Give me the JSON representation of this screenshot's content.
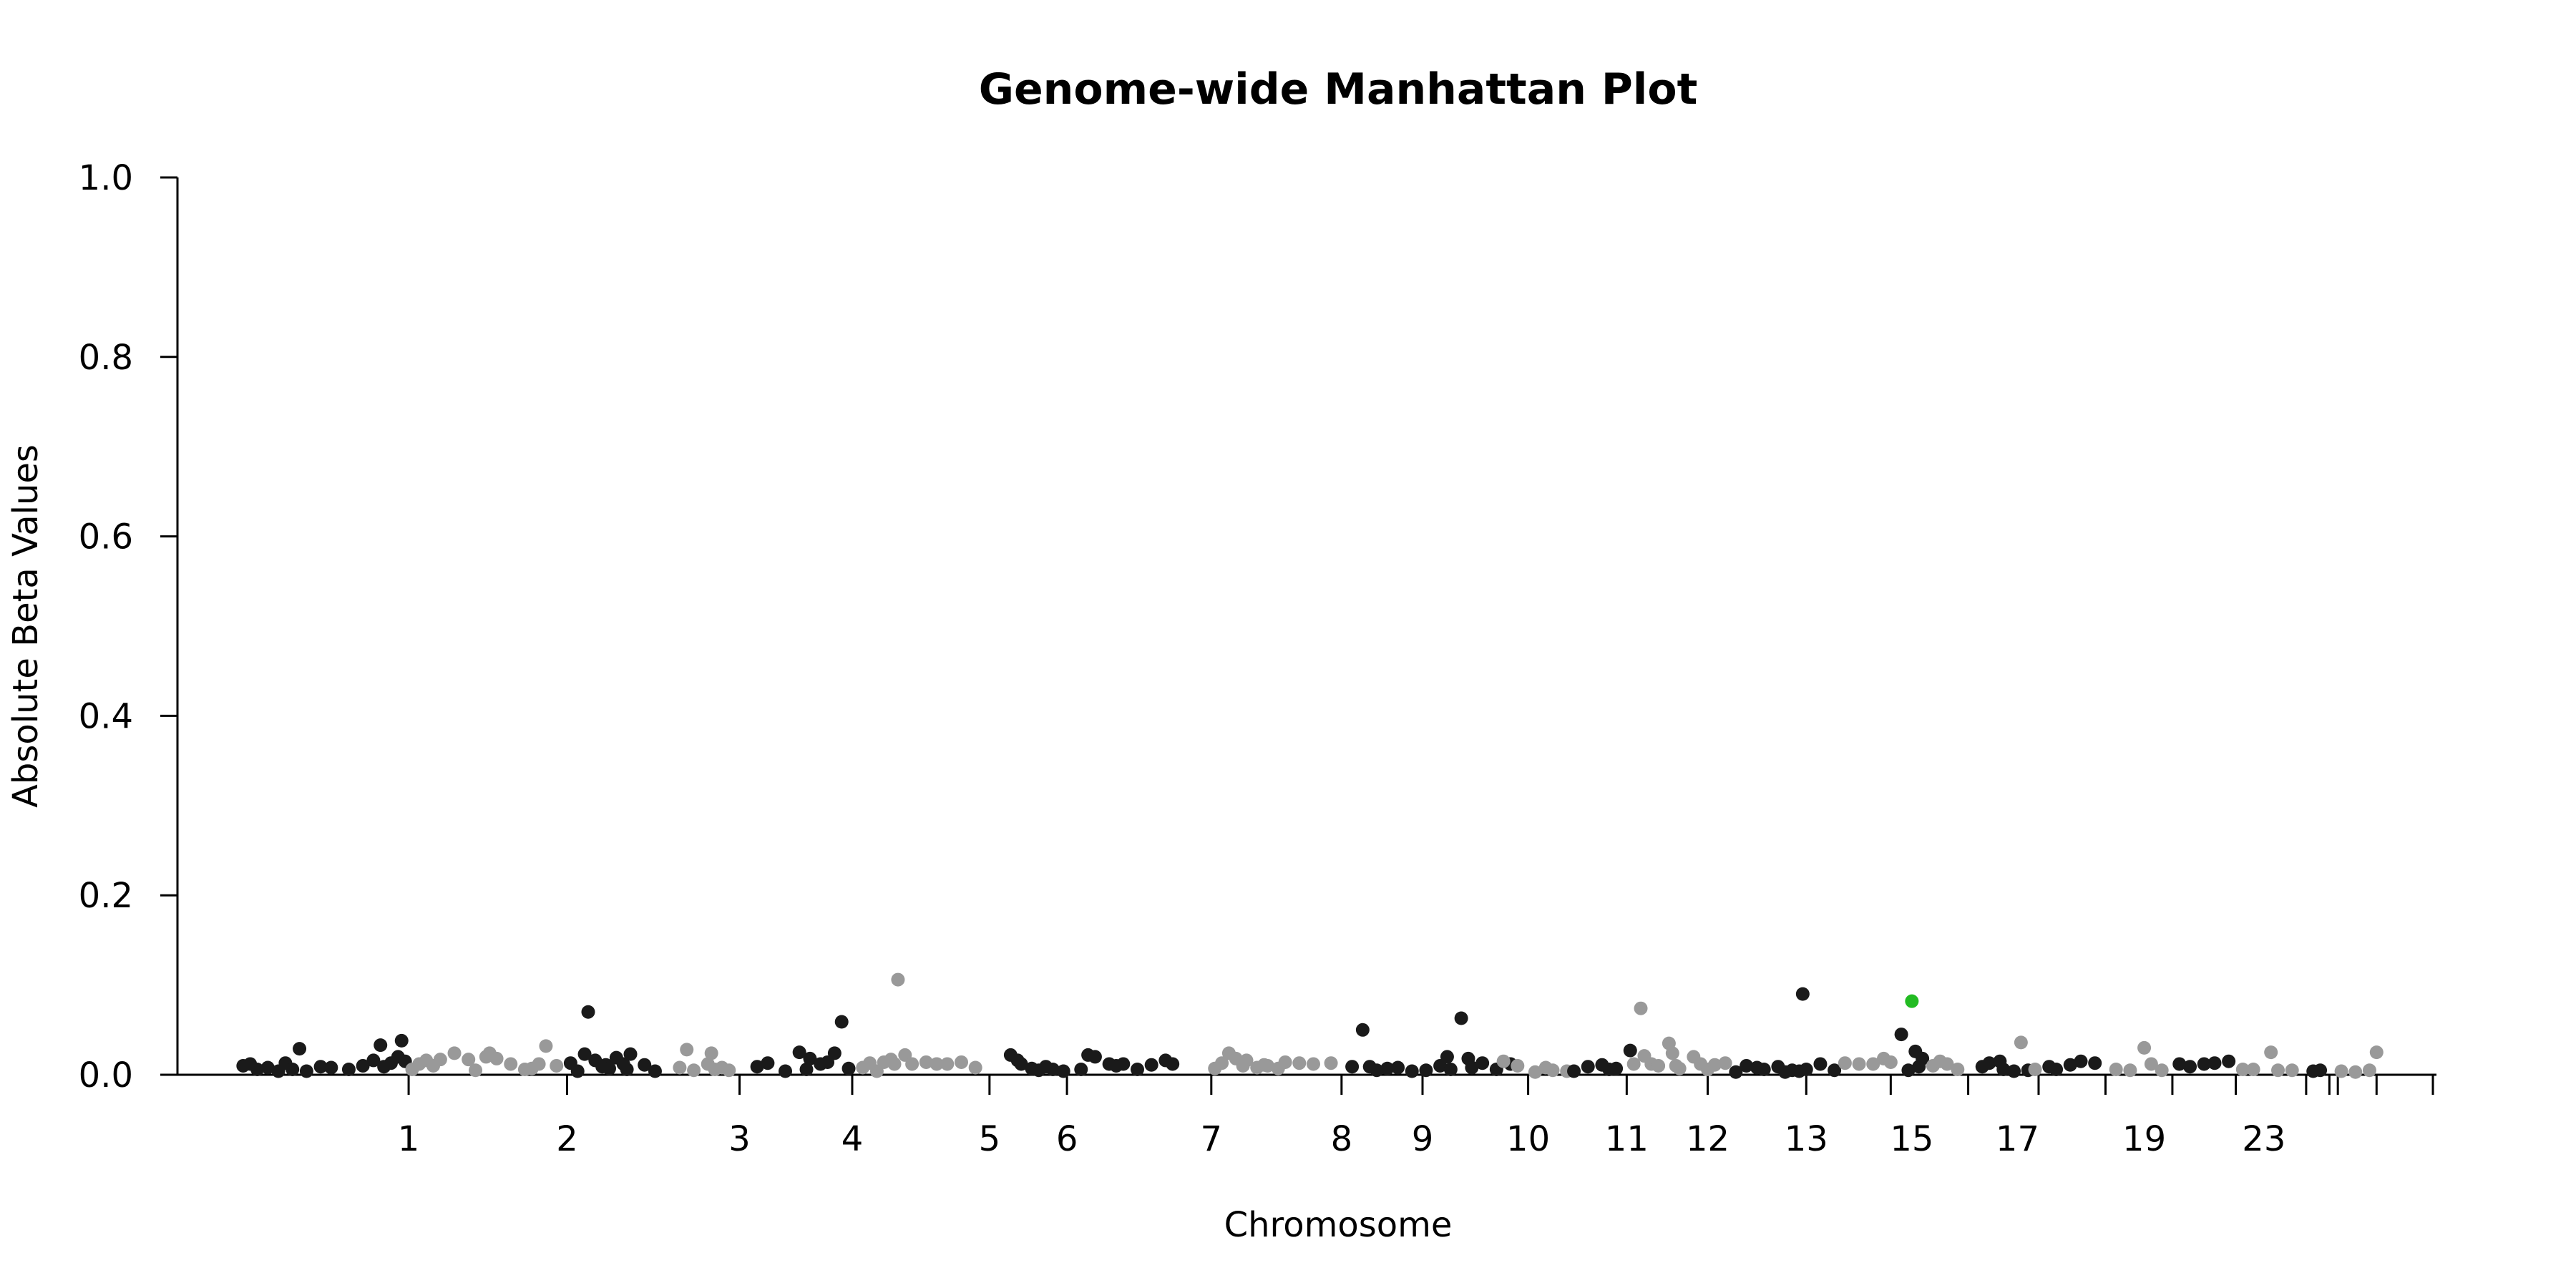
{
  "chart_data": {
    "type": "scatter",
    "title": "Genome-wide Manhattan Plot",
    "xlabel": "Chromosome",
    "ylabel": "Absolute Beta Values",
    "ylim": [
      0,
      1.0
    ],
    "yticks": [
      0.0,
      0.2,
      0.4,
      0.6,
      0.8,
      1.0
    ],
    "ytick_labels": [
      "0.0",
      "0.2",
      "0.4",
      "0.6",
      "0.8",
      "1.0"
    ],
    "xlim": [
      0,
      31.2
    ],
    "chromosome_boundaries": [
      0,
      2.45,
      4.7,
      7.15,
      8.75,
      10.7,
      11.8,
      13.85,
      15.7,
      16.85,
      18.35,
      19.75,
      20.9,
      22.3,
      23.5,
      24.6,
      25.6,
      26.55,
      27.5,
      28.4,
      29.4,
      29.73,
      29.85,
      30.4,
      31.2
    ],
    "x_tick_labels": [
      "1",
      "2",
      "3",
      "4",
      "5",
      "6",
      "7",
      "8",
      "9",
      "10",
      "11",
      "12",
      "13",
      "15",
      "17",
      "19",
      "23"
    ],
    "x_tick_positions": [
      2.45,
      4.7,
      7.15,
      8.75,
      10.7,
      11.8,
      13.85,
      15.7,
      16.85,
      18.35,
      19.75,
      20.9,
      22.3,
      23.8,
      25.3,
      27.1,
      28.8
    ],
    "grid": false,
    "colors": {
      "odd": "#1a1a1a",
      "even": "#999999",
      "highlight": "#22bb22"
    },
    "series": [
      {
        "points": [
          [
            0.1,
            0.01
          ],
          [
            0.2,
            0.012
          ],
          [
            0.3,
            0.006
          ],
          [
            0.45,
            0.008
          ],
          [
            0.6,
            0.004
          ],
          [
            0.7,
            0.013
          ],
          [
            0.8,
            0.006
          ],
          [
            0.9,
            0.029
          ],
          [
            1.0,
            0.004
          ],
          [
            1.2,
            0.009
          ],
          [
            1.35,
            0.008
          ],
          [
            1.6,
            0.006
          ],
          [
            1.8,
            0.01
          ],
          [
            1.95,
            0.016
          ],
          [
            2.05,
            0.033
          ],
          [
            2.1,
            0.009
          ],
          [
            2.2,
            0.013
          ],
          [
            2.3,
            0.02
          ],
          [
            2.35,
            0.038
          ],
          [
            2.4,
            0.015
          ]
        ]
      },
      {
        "points": [
          [
            2.5,
            0.006
          ],
          [
            2.6,
            0.012
          ],
          [
            2.7,
            0.016
          ],
          [
            2.8,
            0.01
          ],
          [
            2.9,
            0.017
          ],
          [
            3.1,
            0.024
          ],
          [
            3.3,
            0.017
          ],
          [
            3.4,
            0.005
          ],
          [
            3.55,
            0.02
          ],
          [
            3.6,
            0.024
          ],
          [
            3.7,
            0.018
          ],
          [
            3.9,
            0.012
          ],
          [
            4.1,
            0.006
          ],
          [
            4.2,
            0.007
          ],
          [
            4.3,
            0.012
          ],
          [
            4.4,
            0.032
          ],
          [
            4.55,
            0.01
          ]
        ]
      },
      {
        "points": [
          [
            4.75,
            0.013
          ],
          [
            4.85,
            0.004
          ],
          [
            4.95,
            0.023
          ],
          [
            5.0,
            0.07
          ],
          [
            5.1,
            0.016
          ],
          [
            5.2,
            0.009
          ],
          [
            5.25,
            0.011
          ],
          [
            5.3,
            0.007
          ],
          [
            5.4,
            0.019
          ],
          [
            5.5,
            0.012
          ],
          [
            5.55,
            0.006
          ],
          [
            5.6,
            0.023
          ],
          [
            5.8,
            0.011
          ],
          [
            5.95,
            0.004
          ]
        ]
      },
      {
        "points": [
          [
            6.3,
            0.008
          ],
          [
            6.4,
            0.028
          ],
          [
            6.5,
            0.005
          ],
          [
            6.7,
            0.012
          ],
          [
            6.75,
            0.024
          ],
          [
            6.8,
            0.006
          ],
          [
            6.9,
            0.008
          ],
          [
            7.0,
            0.005
          ]
        ]
      },
      {
        "points": [
          [
            7.4,
            0.009
          ],
          [
            7.55,
            0.013
          ],
          [
            7.8,
            0.004
          ],
          [
            8.0,
            0.025
          ],
          [
            8.1,
            0.006
          ],
          [
            8.15,
            0.018
          ],
          [
            8.3,
            0.012
          ],
          [
            8.4,
            0.014
          ],
          [
            8.5,
            0.024
          ],
          [
            8.6,
            0.059
          ],
          [
            8.7,
            0.007
          ]
        ]
      },
      {
        "points": [
          [
            8.9,
            0.008
          ],
          [
            9.0,
            0.013
          ],
          [
            9.1,
            0.004
          ],
          [
            9.2,
            0.014
          ],
          [
            9.3,
            0.017
          ],
          [
            9.35,
            0.012
          ],
          [
            9.4,
            0.106
          ],
          [
            9.5,
            0.022
          ],
          [
            9.6,
            0.012
          ],
          [
            9.8,
            0.014
          ],
          [
            9.95,
            0.012
          ],
          [
            10.1,
            0.012
          ],
          [
            10.3,
            0.014
          ],
          [
            10.5,
            0.008
          ]
        ]
      },
      {
        "points": [
          [
            11.0,
            0.022
          ],
          [
            11.1,
            0.016
          ],
          [
            11.15,
            0.012
          ],
          [
            11.3,
            0.007
          ],
          [
            11.4,
            0.005
          ],
          [
            11.5,
            0.009
          ],
          [
            11.6,
            0.006
          ],
          [
            11.75,
            0.004
          ],
          [
            12.0,
            0.006
          ],
          [
            12.1,
            0.022
          ],
          [
            12.2,
            0.02
          ],
          [
            12.4,
            0.012
          ],
          [
            12.5,
            0.01
          ],
          [
            12.6,
            0.012
          ],
          [
            12.8,
            0.006
          ],
          [
            13.0,
            0.011
          ],
          [
            13.2,
            0.016
          ],
          [
            13.3,
            0.012
          ]
        ]
      },
      {
        "points": [
          [
            13.9,
            0.007
          ],
          [
            14.0,
            0.013
          ],
          [
            14.1,
            0.024
          ],
          [
            14.2,
            0.018
          ],
          [
            14.3,
            0.01
          ],
          [
            14.35,
            0.016
          ],
          [
            14.5,
            0.008
          ],
          [
            14.6,
            0.011
          ],
          [
            14.65,
            0.01
          ],
          [
            14.8,
            0.007
          ],
          [
            14.9,
            0.014
          ],
          [
            15.1,
            0.013
          ],
          [
            15.3,
            0.012
          ],
          [
            15.55,
            0.013
          ]
        ]
      },
      {
        "points": [
          [
            15.85,
            0.009
          ],
          [
            16.0,
            0.05
          ],
          [
            16.1,
            0.009
          ],
          [
            16.2,
            0.005
          ],
          [
            16.35,
            0.007
          ],
          [
            16.5,
            0.008
          ],
          [
            16.7,
            0.004
          ],
          [
            16.9,
            0.005
          ],
          [
            17.1,
            0.01
          ],
          [
            17.2,
            0.02
          ],
          [
            17.25,
            0.006
          ],
          [
            17.4,
            0.063
          ],
          [
            17.5,
            0.018
          ],
          [
            17.55,
            0.008
          ],
          [
            17.7,
            0.013
          ],
          [
            17.9,
            0.006
          ],
          [
            18.1,
            0.012
          ]
        ]
      },
      {
        "points": [
          [
            18.0,
            0.015
          ],
          [
            18.2,
            0.01
          ],
          [
            18.45,
            0.003
          ],
          [
            18.6,
            0.008
          ],
          [
            18.7,
            0.005
          ],
          [
            18.9,
            0.004
          ]
        ]
      },
      {
        "points": [
          [
            19.0,
            0.004
          ],
          [
            19.2,
            0.009
          ],
          [
            19.4,
            0.011
          ],
          [
            19.5,
            0.006
          ],
          [
            19.6,
            0.007
          ],
          [
            19.8,
            0.027
          ]
        ]
      },
      {
        "points": [
          [
            19.85,
            0.012
          ],
          [
            19.95,
            0.074
          ],
          [
            20.0,
            0.021
          ],
          [
            20.1,
            0.012
          ],
          [
            20.2,
            0.01
          ],
          [
            20.35,
            0.035
          ],
          [
            20.4,
            0.024
          ],
          [
            20.45,
            0.01
          ],
          [
            20.5,
            0.007
          ],
          [
            20.7,
            0.02
          ],
          [
            20.8,
            0.012
          ],
          [
            20.9,
            0.006
          ],
          [
            21.0,
            0.011
          ],
          [
            21.15,
            0.013
          ]
        ]
      },
      {
        "points": [
          [
            21.3,
            0.003
          ],
          [
            21.45,
            0.01
          ],
          [
            21.6,
            0.008
          ],
          [
            21.7,
            0.006
          ],
          [
            21.9,
            0.009
          ],
          [
            22.0,
            0.003
          ],
          [
            22.1,
            0.005
          ],
          [
            22.2,
            0.004
          ],
          [
            22.25,
            0.09
          ],
          [
            22.3,
            0.006
          ],
          [
            22.5,
            0.012
          ],
          [
            22.7,
            0.005
          ]
        ]
      },
      {
        "points": [
          [
            22.85,
            0.013
          ],
          [
            23.05,
            0.012
          ],
          [
            23.25,
            0.012
          ],
          [
            23.4,
            0.018
          ],
          [
            23.5,
            0.014
          ]
        ]
      },
      {
        "points": [
          [
            23.65,
            0.045
          ],
          [
            23.75,
            0.005
          ],
          [
            23.85,
            0.026
          ],
          [
            23.9,
            0.009
          ],
          [
            23.95,
            0.018
          ]
        ]
      },
      {
        "points": [
          [
            24.1,
            0.01
          ],
          [
            24.2,
            0.015
          ],
          [
            24.3,
            0.012
          ],
          [
            24.45,
            0.006
          ]
        ]
      },
      {
        "points": [
          [
            24.8,
            0.009
          ],
          [
            24.9,
            0.013
          ],
          [
            25.05,
            0.015
          ],
          [
            25.1,
            0.006
          ],
          [
            25.25,
            0.004
          ],
          [
            25.45,
            0.005
          ]
        ]
      },
      {
        "points": [
          [
            25.35,
            0.036
          ],
          [
            25.55,
            0.006
          ]
        ]
      },
      {
        "points": [
          [
            25.75,
            0.009
          ],
          [
            25.85,
            0.006
          ],
          [
            26.05,
            0.011
          ],
          [
            26.2,
            0.015
          ],
          [
            26.4,
            0.013
          ]
        ]
      },
      {
        "points": [
          [
            26.7,
            0.006
          ],
          [
            26.9,
            0.005
          ],
          [
            27.1,
            0.03
          ],
          [
            27.2,
            0.012
          ],
          [
            27.35,
            0.005
          ]
        ]
      },
      {
        "points": [
          [
            27.6,
            0.012
          ],
          [
            27.75,
            0.009
          ],
          [
            27.95,
            0.012
          ],
          [
            28.1,
            0.013
          ],
          [
            28.3,
            0.015
          ]
        ]
      },
      {
        "points": [
          [
            28.5,
            0.006
          ],
          [
            28.65,
            0.006
          ],
          [
            28.9,
            0.025
          ],
          [
            29.0,
            0.005
          ],
          [
            29.2,
            0.005
          ]
        ]
      },
      {
        "points": [
          [
            29.5,
            0.004
          ],
          [
            29.6,
            0.005
          ]
        ]
      },
      {
        "points": [
          [
            29.9,
            0.004
          ],
          [
            30.1,
            0.003
          ],
          [
            30.3,
            0.005
          ],
          [
            30.4,
            0.025
          ]
        ]
      }
    ],
    "highlight": {
      "points": [
        [
          23.8,
          0.082
        ]
      ]
    }
  }
}
